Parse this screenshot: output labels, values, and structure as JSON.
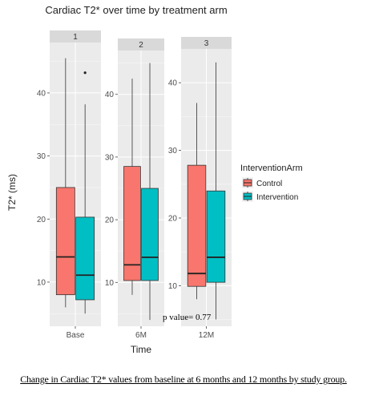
{
  "chart_data": {
    "type": "boxplot",
    "title": "Cardiac T2* over time by treatment arm",
    "xlabel": "Time",
    "ylabel": "T2* (ms)",
    "facets": [
      {
        "strip": "1",
        "time": "Base",
        "ylim": [
          3,
          48
        ],
        "yticks": [
          10,
          20,
          30,
          40
        ],
        "boxes": [
          {
            "group": "Control",
            "min": 6,
            "q1": 8,
            "median": 14,
            "q3": 25,
            "max": 45.5,
            "outliers": []
          },
          {
            "group": "Intervention",
            "min": 5,
            "q1": 7.2,
            "median": 11.1,
            "q3": 20.3,
            "max": 38.2,
            "outliers": [
              43.2
            ]
          }
        ]
      },
      {
        "strip": "2",
        "time": "6M",
        "ylim": [
          3,
          47
        ],
        "yticks": [
          10,
          20,
          30,
          40
        ],
        "boxes": [
          {
            "group": "Control",
            "min": 8,
            "q1": 10.3,
            "median": 12.8,
            "q3": 28.5,
            "max": 42.5,
            "outliers": []
          },
          {
            "group": "Intervention",
            "min": 4,
            "q1": 10.3,
            "median": 14,
            "q3": 25,
            "max": 45,
            "outliers": []
          }
        ]
      },
      {
        "strip": "3",
        "time": "12M",
        "ylim": [
          4,
          45
        ],
        "yticks": [
          10,
          20,
          30,
          40
        ],
        "boxes": [
          {
            "group": "Control",
            "min": 8,
            "q1": 9.9,
            "median": 11.8,
            "q3": 27.8,
            "max": 37,
            "outliers": []
          },
          {
            "group": "Intervention",
            "min": 5,
            "q1": 10.5,
            "median": 14.2,
            "q3": 24,
            "max": 43,
            "outliers": []
          }
        ]
      }
    ],
    "legend": {
      "title": "InterventionArm",
      "position": "right",
      "entries": [
        {
          "label": "Control",
          "color": "#F8766D"
        },
        {
          "label": "Intervention",
          "color": "#00BFC4"
        }
      ]
    },
    "annotation": "p value= 0.77",
    "grid": true
  },
  "colors": {
    "panel": "#EBEBEB",
    "strip": "#D9D9D9",
    "grid": "#FFFFFF",
    "control": "#F8766D",
    "intervention": "#00BFC4"
  },
  "caption": "Change in Cardiac T2* values from baseline at 6 months and 12 months by study group."
}
